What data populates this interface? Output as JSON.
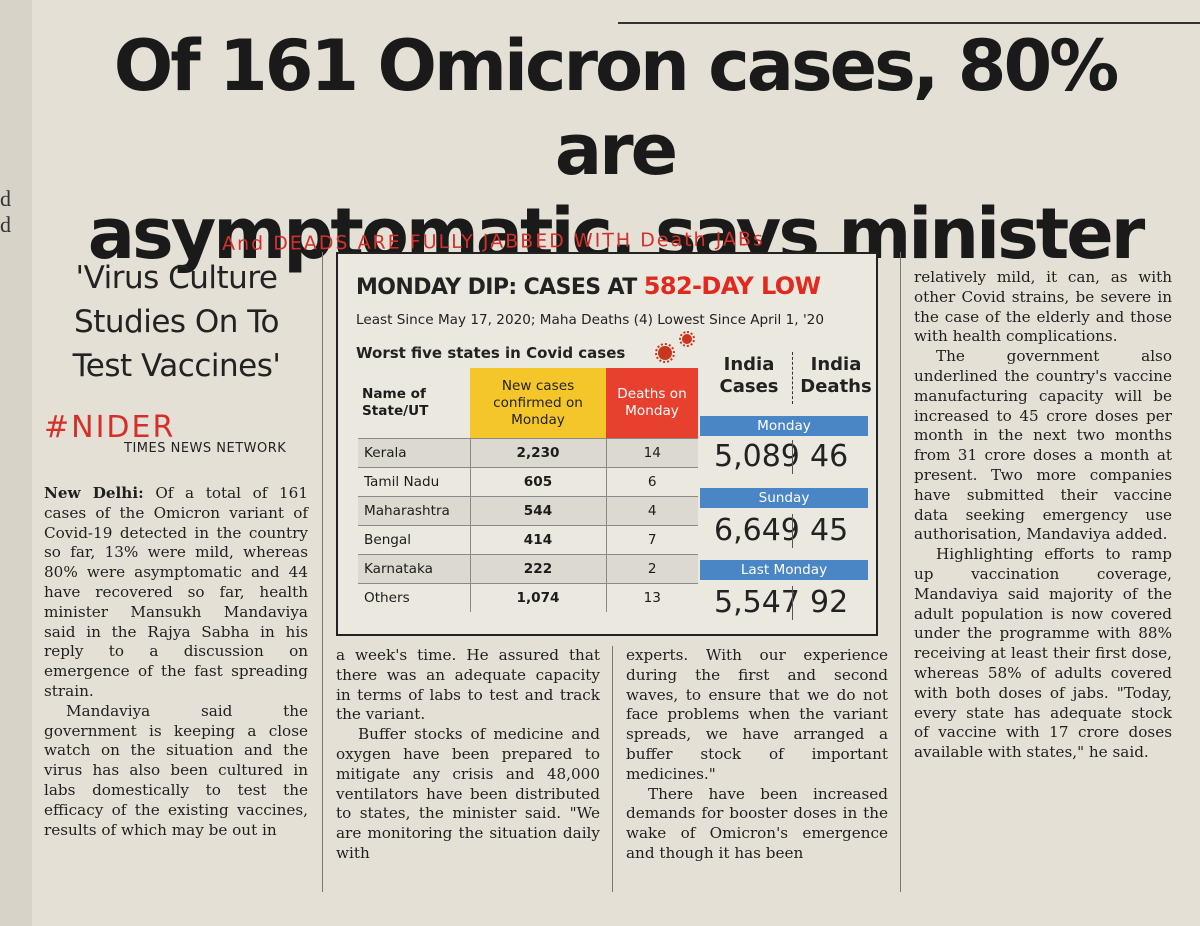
{
  "headline": {
    "line1": "Of 161 Omicron cases, 80% are",
    "line2": "asymptomatic, says minister"
  },
  "annotations": {
    "handwritten_line": "And  DEADS ARE  FULLY  JABBED WITH Death JABs",
    "hashtag": "#NIDER",
    "color": "#d4302b"
  },
  "margin_fragments": [
    "d",
    "d"
  ],
  "sidebar": {
    "quote": "'Virus Culture Studies On To Test Vaccines'",
    "byline": "TIMES NEWS NETWORK"
  },
  "infobox": {
    "title_prefix": "MONDAY DIP: CASES AT ",
    "title_highlight": "582-DAY LOW",
    "highlight_color": "#e02a1e",
    "subtitle": "Least Since May 17, 2020; Maha Deaths (4) Lowest Since April 1, '20",
    "table_heading": "Worst five states in Covid cases",
    "table": {
      "headers": [
        "Name of State/UT",
        "New cases confirmed on Monday",
        "Deaths on Monday"
      ],
      "rows": [
        {
          "state": "Kerala",
          "cases": "2,230",
          "deaths": "14"
        },
        {
          "state": "Tamil Nadu",
          "cases": "605",
          "deaths": "6"
        },
        {
          "state": "Maharashtra",
          "cases": "544",
          "deaths": "4"
        },
        {
          "state": "Bengal",
          "cases": "414",
          "deaths": "7"
        },
        {
          "state": "Karnataka",
          "cases": "222",
          "deaths": "2"
        },
        {
          "state": "Others",
          "cases": "1,074",
          "deaths": "13"
        }
      ],
      "header_colors": {
        "cases": "#f5c62a",
        "deaths": "#e8402e"
      }
    },
    "india": {
      "cases_label": "India Cases",
      "deaths_label": "India Deaths",
      "bar_color": "#4a86c6",
      "periods": [
        {
          "label": "Monday",
          "cases": "5,089",
          "deaths": "46"
        },
        {
          "label": "Sunday",
          "cases": "6,649",
          "deaths": "45"
        },
        {
          "label": "Last Monday",
          "cases": "5,547",
          "deaths": "92"
        }
      ]
    }
  },
  "article": {
    "dateline": "New Delhi:",
    "col1_p1": "Of a total of 161 cases of the Omicron variant of Covid-19 detected in the country so far, 13% were mild, whereas 80% were asymptomatic and 44 have recovered so far, health minister Mansukh Mandaviya said in the Rajya Sabha in his reply to a discussion on emergence of the fast spreading strain.",
    "col1_p2": "Mandaviya said the government is keeping a close watch on the situation and the virus has also been cultured in labs domestically to test the efficacy of the existing vaccines, results of which may be out in",
    "col2_p1": "a week's time. He assured that there was an adequate capacity in terms of labs to test and track the variant.",
    "col2_p2": "Buffer stocks of medicine and oxygen have been prepared to mitigate any crisis and 48,000 ventilators have been distributed to states, the minister said. \"We are monitoring the situation daily with",
    "col3_p1": "experts. With our experience during the first and second waves, to ensure that we do not face problems when the variant spreads, we have arranged a buffer stock of important medicines.\"",
    "col3_p2": "There have been increased demands for booster doses in the wake of Omicron's emergence and though it has been",
    "col4_p1": "relatively mild, it can, as with other Covid strains, be severe in the case of the elderly and those with health complications.",
    "col4_p2": "The government also underlined the country's vaccine manufacturing capacity will be increased to 45 crore doses per month in the next two months from 31 crore doses a month at present. Two more companies have submitted their vaccine data seeking emergency use authorisation, Mandaviya added.",
    "col4_p3": "Highlighting efforts to ramp up vaccination coverage, Mandaviya said majority of the adult population is now covered under the programme with 88% receiving at least their first dose, whereas 58% of adults covered with both doses of jabs. \"Today, every state has adequate stock of vaccine with 17 crore doses available with states,\" he said."
  }
}
